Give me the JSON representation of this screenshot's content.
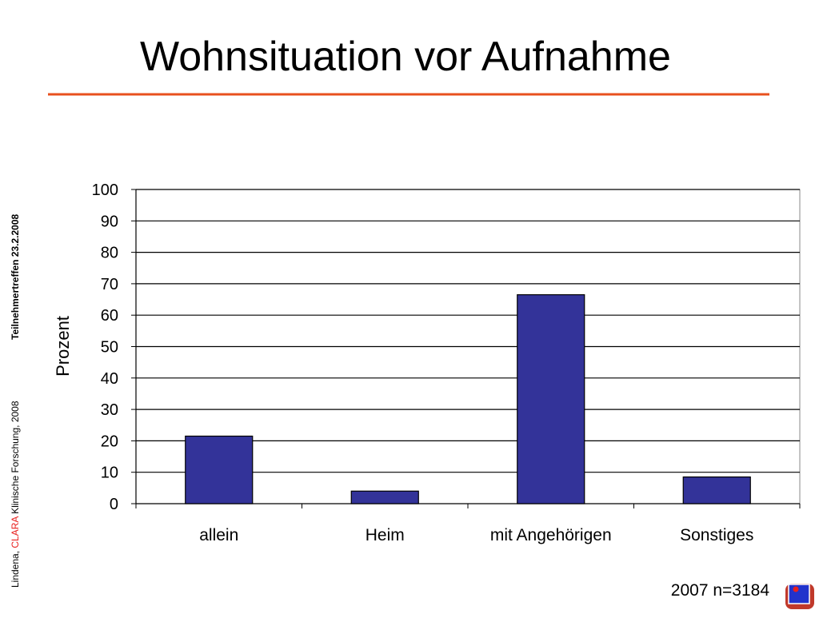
{
  "chart_data": {
    "type": "bar",
    "title": "Wohnsituation vor Aufnahme",
    "y_label": "Prozent",
    "categories": [
      "allein",
      "Heim",
      "mit Angehörigen",
      "Sonstiges"
    ],
    "values": [
      21.5,
      4,
      66.5,
      8.5
    ],
    "color": "#333399",
    "ylim": [
      0,
      100
    ],
    "yticks": [
      0,
      10,
      20,
      30,
      40,
      50,
      60,
      70,
      80,
      90,
      100
    ],
    "grid": true,
    "annotation": "2007 n=3184"
  },
  "sidebar": {
    "author": "Lindena,",
    "brand": "CLARA",
    "org": "Klinische Forschung, 2008",
    "event": "Teilnehmertreffen 23.2.2008"
  }
}
